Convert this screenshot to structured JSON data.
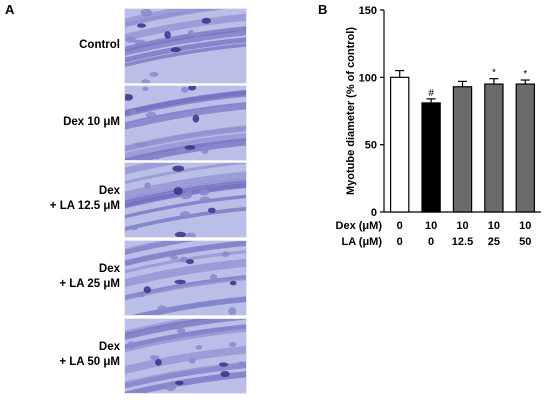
{
  "panel_a": {
    "letter": "A",
    "rows": [
      {
        "label_lines": [
          "Control"
        ]
      },
      {
        "label_lines": [
          "Dex 10 μM"
        ]
      },
      {
        "label_lines": [
          "Dex",
          "+ LA 12.5 μM"
        ]
      },
      {
        "label_lines": [
          "Dex",
          "+ LA 25 μM"
        ]
      },
      {
        "label_lines": [
          "Dex",
          "+ LA 50 μM"
        ]
      }
    ]
  },
  "panel_b": {
    "letter": "B",
    "table_rows": [
      {
        "label": "Dex (μM)",
        "values": [
          "0",
          "10",
          "10",
          "10",
          "10"
        ]
      },
      {
        "label": "LA (μM)",
        "values": [
          "0",
          "0",
          "12.5",
          "25",
          "50"
        ]
      }
    ]
  },
  "colors": {
    "bar_control": "#ffffff",
    "bar_dex": "#000000",
    "bar_la": "#6b6b6b",
    "stain_bg": "#b9bfe6",
    "stain_dark": "#3b2f8a"
  },
  "chart_data": {
    "type": "bar",
    "title": "",
    "xlabel": "",
    "ylabel": "Myotube diameter (% of control)",
    "ylim": [
      0,
      150
    ],
    "yticks": [
      0,
      50,
      100,
      150
    ],
    "categories": [
      "0/0",
      "10/0",
      "10/12.5",
      "10/25",
      "10/50"
    ],
    "values": [
      100,
      81,
      93,
      95,
      95
    ],
    "errors": [
      5,
      3,
      4,
      4,
      3
    ],
    "fill_colors": [
      "#ffffff",
      "#000000",
      "#6b6b6b",
      "#6b6b6b",
      "#6b6b6b"
    ],
    "annotations": [
      "",
      "#",
      "",
      "*",
      "*"
    ]
  }
}
